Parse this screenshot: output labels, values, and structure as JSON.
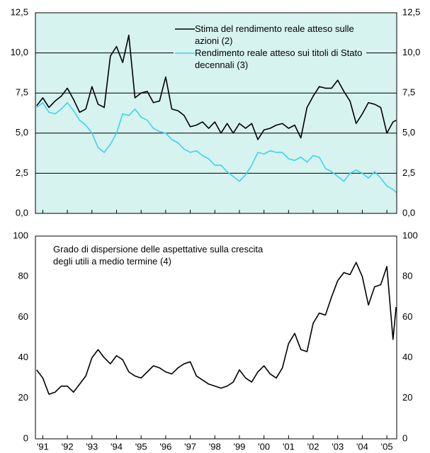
{
  "chart_data": [
    {
      "type": "line",
      "background": "#d6f3ef",
      "grid": true,
      "legend": "top-right",
      "xlim": [
        1991.2,
        2005.9
      ],
      "xticks": [
        1991.5,
        1992.5,
        1993.5,
        1994.5,
        1995.5,
        1996.5,
        1997.5,
        1998.5,
        1999.5,
        2000.5,
        2001.5,
        2002.5,
        2003.5,
        2004.5,
        2005.5
      ],
      "ylim": [
        0,
        12.5
      ],
      "yticks": [
        {
          "value": 0,
          "label": "0,0"
        },
        {
          "value": 2.5,
          "label": "2,5"
        },
        {
          "value": 5,
          "label": "5,0"
        },
        {
          "value": 7.5,
          "label": "7,5"
        },
        {
          "value": 10,
          "label": "10,0"
        },
        {
          "value": 12.5,
          "label": "12,5"
        }
      ],
      "x": [
        1991.25,
        1991.5,
        1991.75,
        1992,
        1992.25,
        1992.5,
        1992.75,
        1993,
        1993.25,
        1993.5,
        1993.75,
        1994,
        1994.25,
        1994.5,
        1994.75,
        1995,
        1995.25,
        1995.5,
        1995.75,
        1996,
        1996.25,
        1996.5,
        1996.75,
        1997,
        1997.25,
        1997.5,
        1997.75,
        1998,
        1998.25,
        1998.5,
        1998.75,
        1999,
        1999.25,
        1999.5,
        1999.75,
        2000,
        2000.25,
        2000.5,
        2000.75,
        2001,
        2001.25,
        2001.5,
        2001.75,
        2002,
        2002.25,
        2002.5,
        2002.75,
        2003,
        2003.25,
        2003.5,
        2003.75,
        2004,
        2004.25,
        2004.5,
        2004.75,
        2005,
        2005.25,
        2005.5,
        2005.75,
        2005.875
      ],
      "series": [
        {
          "name": "Stima del rendimento reale atteso sulle azioni (2)",
          "color": "#000000",
          "values": [
            6.7,
            7.2,
            6.6,
            7.0,
            7.3,
            7.8,
            7.1,
            6.3,
            6.5,
            7.9,
            6.8,
            6.6,
            9.8,
            10.4,
            9.4,
            11.1,
            7.2,
            7.5,
            7.6,
            6.9,
            7.0,
            8.5,
            6.5,
            6.4,
            6.1,
            5.4,
            5.5,
            5.7,
            5.3,
            5.7,
            5.0,
            5.6,
            5.0,
            5.6,
            5.3,
            5.6,
            4.6,
            5.2,
            5.3,
            5.5,
            5.6,
            5.3,
            5.5,
            4.7,
            6.6,
            7.3,
            7.9,
            7.8,
            7.8,
            8.3,
            7.6,
            7.0,
            5.6,
            6.2,
            6.9,
            6.8,
            6.6,
            5.0,
            5.7,
            5.8
          ]
        },
        {
          "name": "Rendimento reale atteso sui titoli di Stato decennali (3)",
          "color": "#3fd3f0",
          "values": [
            6.6,
            6.9,
            6.3,
            6.2,
            6.5,
            6.9,
            6.4,
            5.8,
            5.5,
            5.0,
            4.1,
            3.8,
            4.3,
            5.0,
            6.2,
            6.1,
            6.5,
            6.0,
            5.8,
            5.3,
            5.1,
            5.0,
            4.6,
            4.4,
            4.0,
            3.8,
            3.9,
            3.6,
            3.4,
            3.0,
            3.0,
            2.6,
            2.3,
            2.0,
            2.4,
            3.0,
            3.8,
            3.7,
            3.9,
            3.8,
            3.8,
            3.4,
            3.3,
            3.5,
            3.2,
            3.6,
            3.5,
            2.8,
            2.6,
            2.3,
            2.0,
            2.5,
            2.7,
            2.5,
            2.2,
            2.6,
            2.2,
            1.7,
            1.5,
            1.3
          ]
        }
      ]
    },
    {
      "type": "line",
      "background": "#ffffff",
      "grid": false,
      "legend": "top-left",
      "xlim": [
        1991.2,
        2005.9
      ],
      "xticks": [
        {
          "value": 1991.5,
          "label": "'91"
        },
        {
          "value": 1992.5,
          "label": "'92"
        },
        {
          "value": 1993.5,
          "label": "'93"
        },
        {
          "value": 1994.5,
          "label": "'94"
        },
        {
          "value": 1995.5,
          "label": "'95"
        },
        {
          "value": 1996.5,
          "label": "'96"
        },
        {
          "value": 1997.5,
          "label": "'97"
        },
        {
          "value": 1998.5,
          "label": "'98"
        },
        {
          "value": 1999.5,
          "label": "'99"
        },
        {
          "value": 2000.5,
          "label": "'00"
        },
        {
          "value": 2001.5,
          "label": "'01"
        },
        {
          "value": 2002.5,
          "label": "'02"
        },
        {
          "value": 2003.5,
          "label": "'03"
        },
        {
          "value": 2004.5,
          "label": "'04"
        },
        {
          "value": 2005.5,
          "label": "'05"
        }
      ],
      "ylim": [
        0,
        100
      ],
      "yticks": [
        0,
        20,
        40,
        60,
        80,
        100
      ],
      "x": [
        1991.25,
        1991.5,
        1991.75,
        1992,
        1992.25,
        1992.5,
        1992.75,
        1993,
        1993.25,
        1993.5,
        1993.75,
        1994,
        1994.25,
        1994.5,
        1994.75,
        1995,
        1995.25,
        1995.5,
        1995.75,
        1996,
        1996.25,
        1996.5,
        1996.75,
        1997,
        1997.25,
        1997.5,
        1997.75,
        1998,
        1998.25,
        1998.5,
        1998.75,
        1999,
        1999.25,
        1999.5,
        1999.75,
        2000,
        2000.25,
        2000.5,
        2000.75,
        2001,
        2001.25,
        2001.5,
        2001.75,
        2002,
        2002.25,
        2002.5,
        2002.75,
        2003,
        2003.25,
        2003.5,
        2003.75,
        2004,
        2004.25,
        2004.5,
        2004.75,
        2005,
        2005.25,
        2005.5,
        2005.75,
        2005.875
      ],
      "series": [
        {
          "name": "Grado di dispersione delle aspettative sulla crescita degli utili a medio termine (4)",
          "color": "#000000",
          "values": [
            34,
            30,
            22,
            23,
            26,
            26,
            23,
            27,
            31,
            40,
            44,
            40,
            37,
            41,
            39,
            33,
            31,
            30,
            33,
            36,
            35,
            33,
            32,
            35,
            37,
            38,
            31,
            29,
            27,
            26,
            25,
            26,
            28,
            34,
            30,
            28,
            33,
            36,
            32,
            30,
            35,
            47,
            52,
            44,
            43,
            57,
            62,
            61,
            70,
            78,
            82,
            81,
            87,
            80,
            66,
            75,
            76,
            85,
            49,
            65
          ]
        }
      ]
    }
  ]
}
